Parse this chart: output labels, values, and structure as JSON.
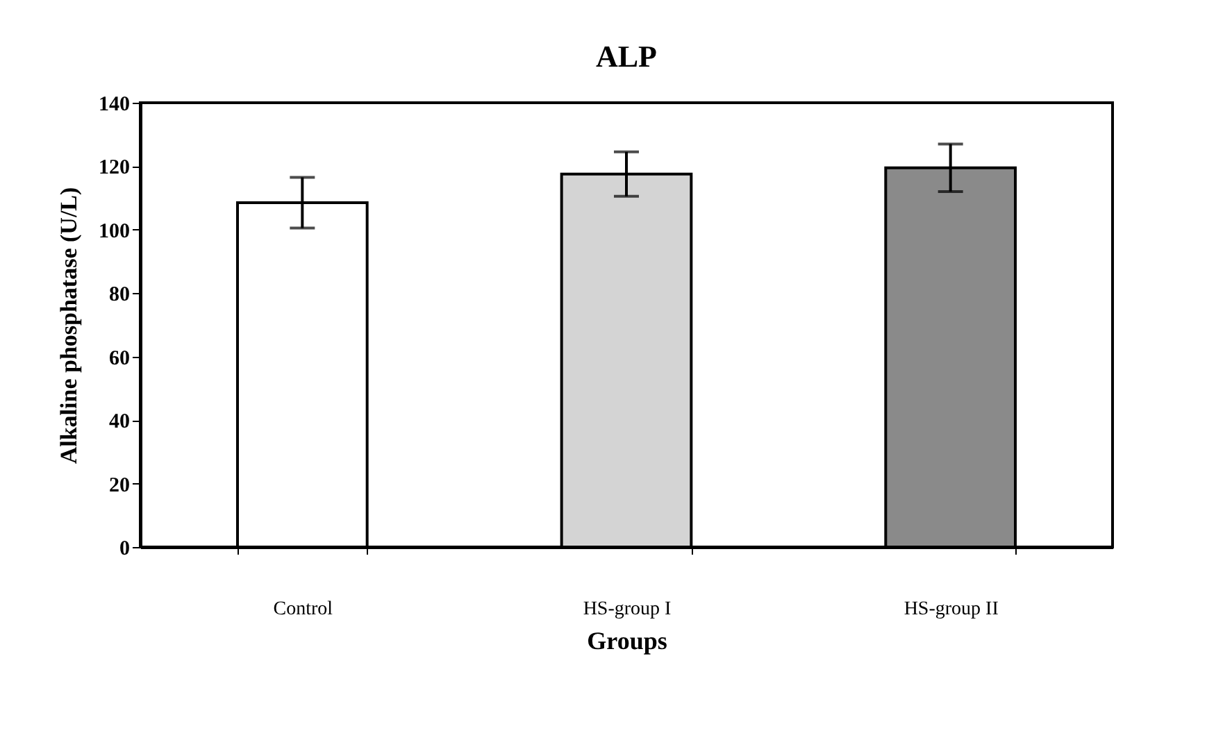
{
  "chart_data": {
    "type": "bar",
    "title": "ALP",
    "xlabel": "Groups",
    "ylabel": "Alkaline phosphatase (U/L)",
    "categories": [
      "Control",
      "HS-group I",
      "HS-group II"
    ],
    "values": [
      108.5,
      117.5,
      119.5
    ],
    "errors": [
      8,
      7,
      7.5
    ],
    "colors": [
      "#ffffff",
      "#d4d4d4",
      "#8a8a8a"
    ],
    "ylim": [
      0,
      140
    ],
    "yticks": [
      0,
      20,
      40,
      60,
      80,
      100,
      120,
      140
    ]
  }
}
